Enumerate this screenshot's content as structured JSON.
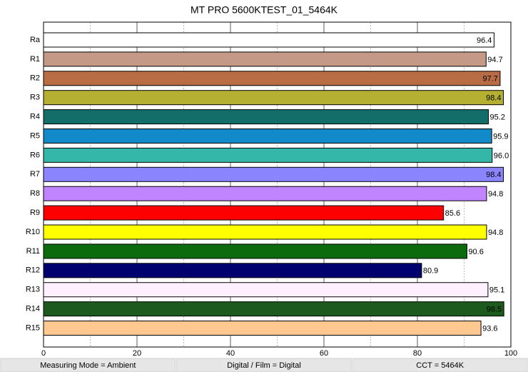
{
  "chart_data": {
    "type": "hbar",
    "title": "MT PRO 5600KTEST_01_5464K",
    "categories": [
      "Ra",
      "R1",
      "R2",
      "R3",
      "R4",
      "R5",
      "R6",
      "R7",
      "R8",
      "R9",
      "R10",
      "R11",
      "R12",
      "R13",
      "R14",
      "R15"
    ],
    "values": [
      96.4,
      94.7,
      97.7,
      98.4,
      95.2,
      95.9,
      96.0,
      98.4,
      94.8,
      85.6,
      94.8,
      90.6,
      80.9,
      95.1,
      98.5,
      93.6
    ],
    "value_labels": [
      "96.4",
      "94.7",
      "97.7",
      "98.4",
      "95.2",
      "95.9",
      "96.0",
      "98.4",
      "94.8",
      "85.6",
      "94.8",
      "90.6",
      "80.9",
      "95.1",
      "98.5",
      "93.6"
    ],
    "colors": [
      "#ffffff",
      "#c49a87",
      "#b86d45",
      "#b5b032",
      "#136e6a",
      "#1289c8",
      "#34b7a8",
      "#8a85ff",
      "#c084ff",
      "#ff0000",
      "#ffff00",
      "#0c6b0c",
      "#00006e",
      "#fff0ff",
      "#1d5a1d",
      "#ffc890"
    ],
    "xlim": [
      0,
      100
    ],
    "xticks": [
      0,
      20,
      40,
      60,
      80,
      100
    ],
    "minor_xticks": [
      10,
      30,
      50,
      70,
      90
    ],
    "grid": true
  },
  "footer": [
    "Measuring Mode = Ambient",
    "Digital / Film = Digital",
    "CCT = 5464K"
  ]
}
